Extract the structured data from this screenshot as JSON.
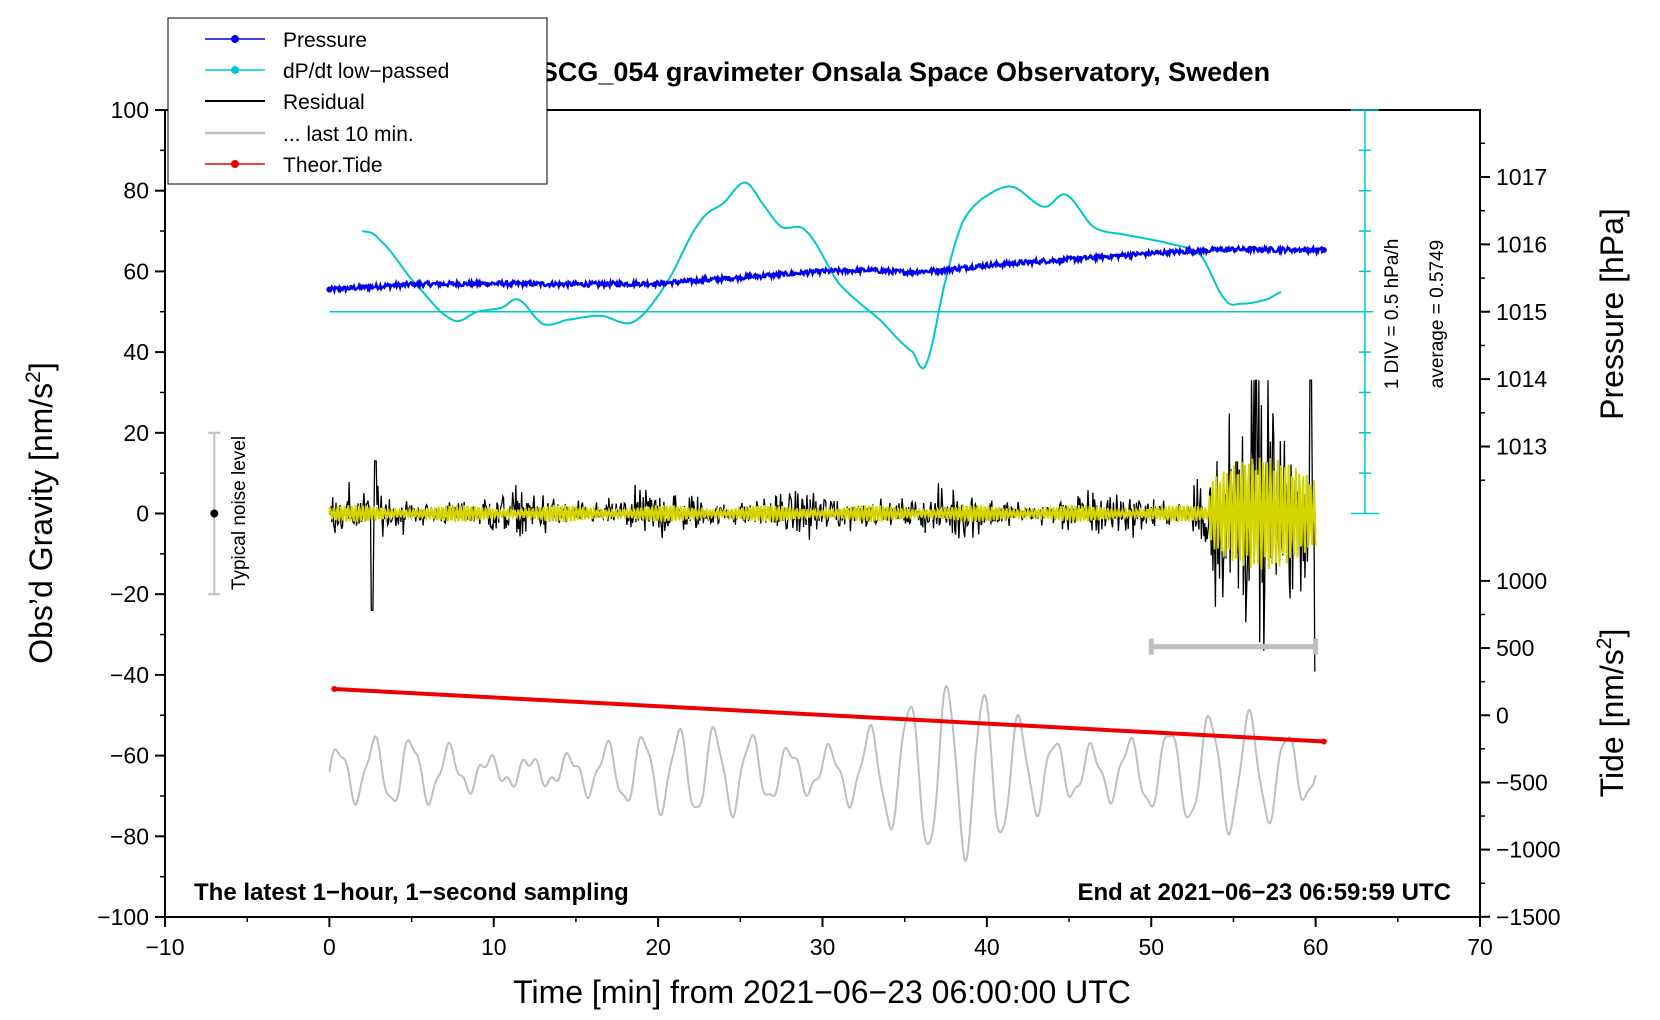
{
  "chart_data": {
    "type": "line",
    "title": "SCG_054 gravimeter Onsala Space Observatory, Sweden",
    "xlabel": "Time [min] from 2021−06−23 06:00:00 UTC",
    "ylabel_left": "Obs’d Gravity [nm/s",
    "ylabel_left_sup": "2",
    "ylabel_left_end": "]",
    "ylabel_pressure": "Pressure [hPa]",
    "ylabel_tide": "Tide [nm/s",
    "ylabel_tide_sup": "2",
    "ylabel_tide_end": "]",
    "xlim": [
      -10,
      70
    ],
    "ylim": [
      -100,
      100
    ],
    "x_ticks": [
      -10,
      0,
      10,
      20,
      30,
      40,
      50,
      60,
      70
    ],
    "x_tick_labels": [
      "−10",
      "0",
      "10",
      "20",
      "30",
      "40",
      "50",
      "60",
      "70"
    ],
    "y_ticks": [
      -100,
      -80,
      -60,
      -40,
      -20,
      0,
      20,
      40,
      60,
      80,
      100
    ],
    "y_tick_labels": [
      "−100",
      "−80",
      "−60",
      "−40",
      "−20",
      "0",
      "20",
      "40",
      "60",
      "80",
      "100"
    ],
    "pressure_axis": {
      "ticks": [
        1013,
        1014,
        1015,
        1016,
        1017
      ],
      "tick_labels": [
        "1013",
        "1014",
        "1015",
        "1016",
        "1017"
      ],
      "gravity_at_1015": 50,
      "gravity_per_hpa": 16.7
    },
    "tide_axis": {
      "ticks": [
        -1500,
        -1000,
        -500,
        0,
        500,
        1000
      ],
      "tick_labels": [
        "−1500",
        "−1000",
        "−500",
        "0",
        "500",
        "1000"
      ],
      "gravity_at_0": -50,
      "gravity_per_unit": 0.0333
    },
    "legend": [
      {
        "label": "Pressure",
        "color": "#0000ee",
        "marker": true
      },
      {
        "label": "dP/dt low−passed",
        "color": "#00c8c8",
        "marker": true
      },
      {
        "label": "Residual",
        "color": "#000000",
        "marker": false
      },
      {
        "label": "... last 10 min.",
        "color": "#bfbfbf",
        "marker": false
      },
      {
        "label": "Theor.Tide",
        "color": "#ee0000",
        "marker": true
      }
    ],
    "series": [
      {
        "name": "Pressure",
        "color": "#0000ee",
        "x": [
          0,
          5,
          10,
          15,
          20,
          25,
          30,
          33,
          35,
          37,
          40,
          45,
          50,
          55,
          60.5
        ],
        "y": [
          55.5,
          56.8,
          57,
          56.8,
          57,
          58.5,
          60,
          60.3,
          59.8,
          60.2,
          61.5,
          63,
          64.5,
          65.5,
          65.3
        ]
      },
      {
        "name": "dP/dt low-passed",
        "color": "#00c8c8",
        "x": [
          2,
          3,
          5,
          7.5,
          9,
          10.5,
          11.5,
          13,
          14.5,
          16.5,
          18.5,
          20.5,
          22.5,
          24,
          25.3,
          26.5,
          27.5,
          29,
          31,
          33.5,
          35.5,
          36.3,
          37.5,
          38.5,
          39.7,
          41.5,
          43.5,
          44.8,
          46.5,
          48.5,
          51,
          53,
          54.5,
          55.5,
          57,
          58
        ],
        "y": [
          70,
          68,
          58,
          48,
          50,
          51,
          53,
          47,
          48,
          49,
          47.5,
          57,
          72,
          77,
          82,
          76,
          71,
          70,
          57,
          48,
          40,
          37,
          58,
          72,
          78,
          81,
          76,
          79,
          71,
          69,
          67,
          64,
          53,
          52,
          53,
          55
        ]
      },
      {
        "name": "Residual",
        "color": "#000000",
        "x_range": [
          0,
          60
        ]
      },
      {
        "name": "Residual (yellow overlay)",
        "color": "#d4d400",
        "x_range": [
          0,
          60
        ]
      },
      {
        "name": "... last 10 min.",
        "color": "#bfbfbf",
        "x_range": [
          0,
          60
        ]
      },
      {
        "name": "Theor.Tide",
        "color": "#ee0000",
        "x": [
          0.3,
          60.5
        ],
        "y": [
          -43.5,
          -56.5
        ]
      }
    ],
    "dpdt_scale": {
      "baseline": 50,
      "label_div": "1 DIV = 0.5 hPa/h",
      "label_avg": "average = 0.5749"
    },
    "noise_bar": {
      "x": -7,
      "y_low": -20,
      "y_high": 20,
      "label": "Typical noise level"
    },
    "ten_min_bar": {
      "x_start": 50,
      "x_end": 60,
      "y": -33
    },
    "annotations": {
      "bottom_left": "The latest 1−hour, 1−second sampling",
      "bottom_right": "End at 2021−06−23 06:59:59 UTC"
    }
  }
}
